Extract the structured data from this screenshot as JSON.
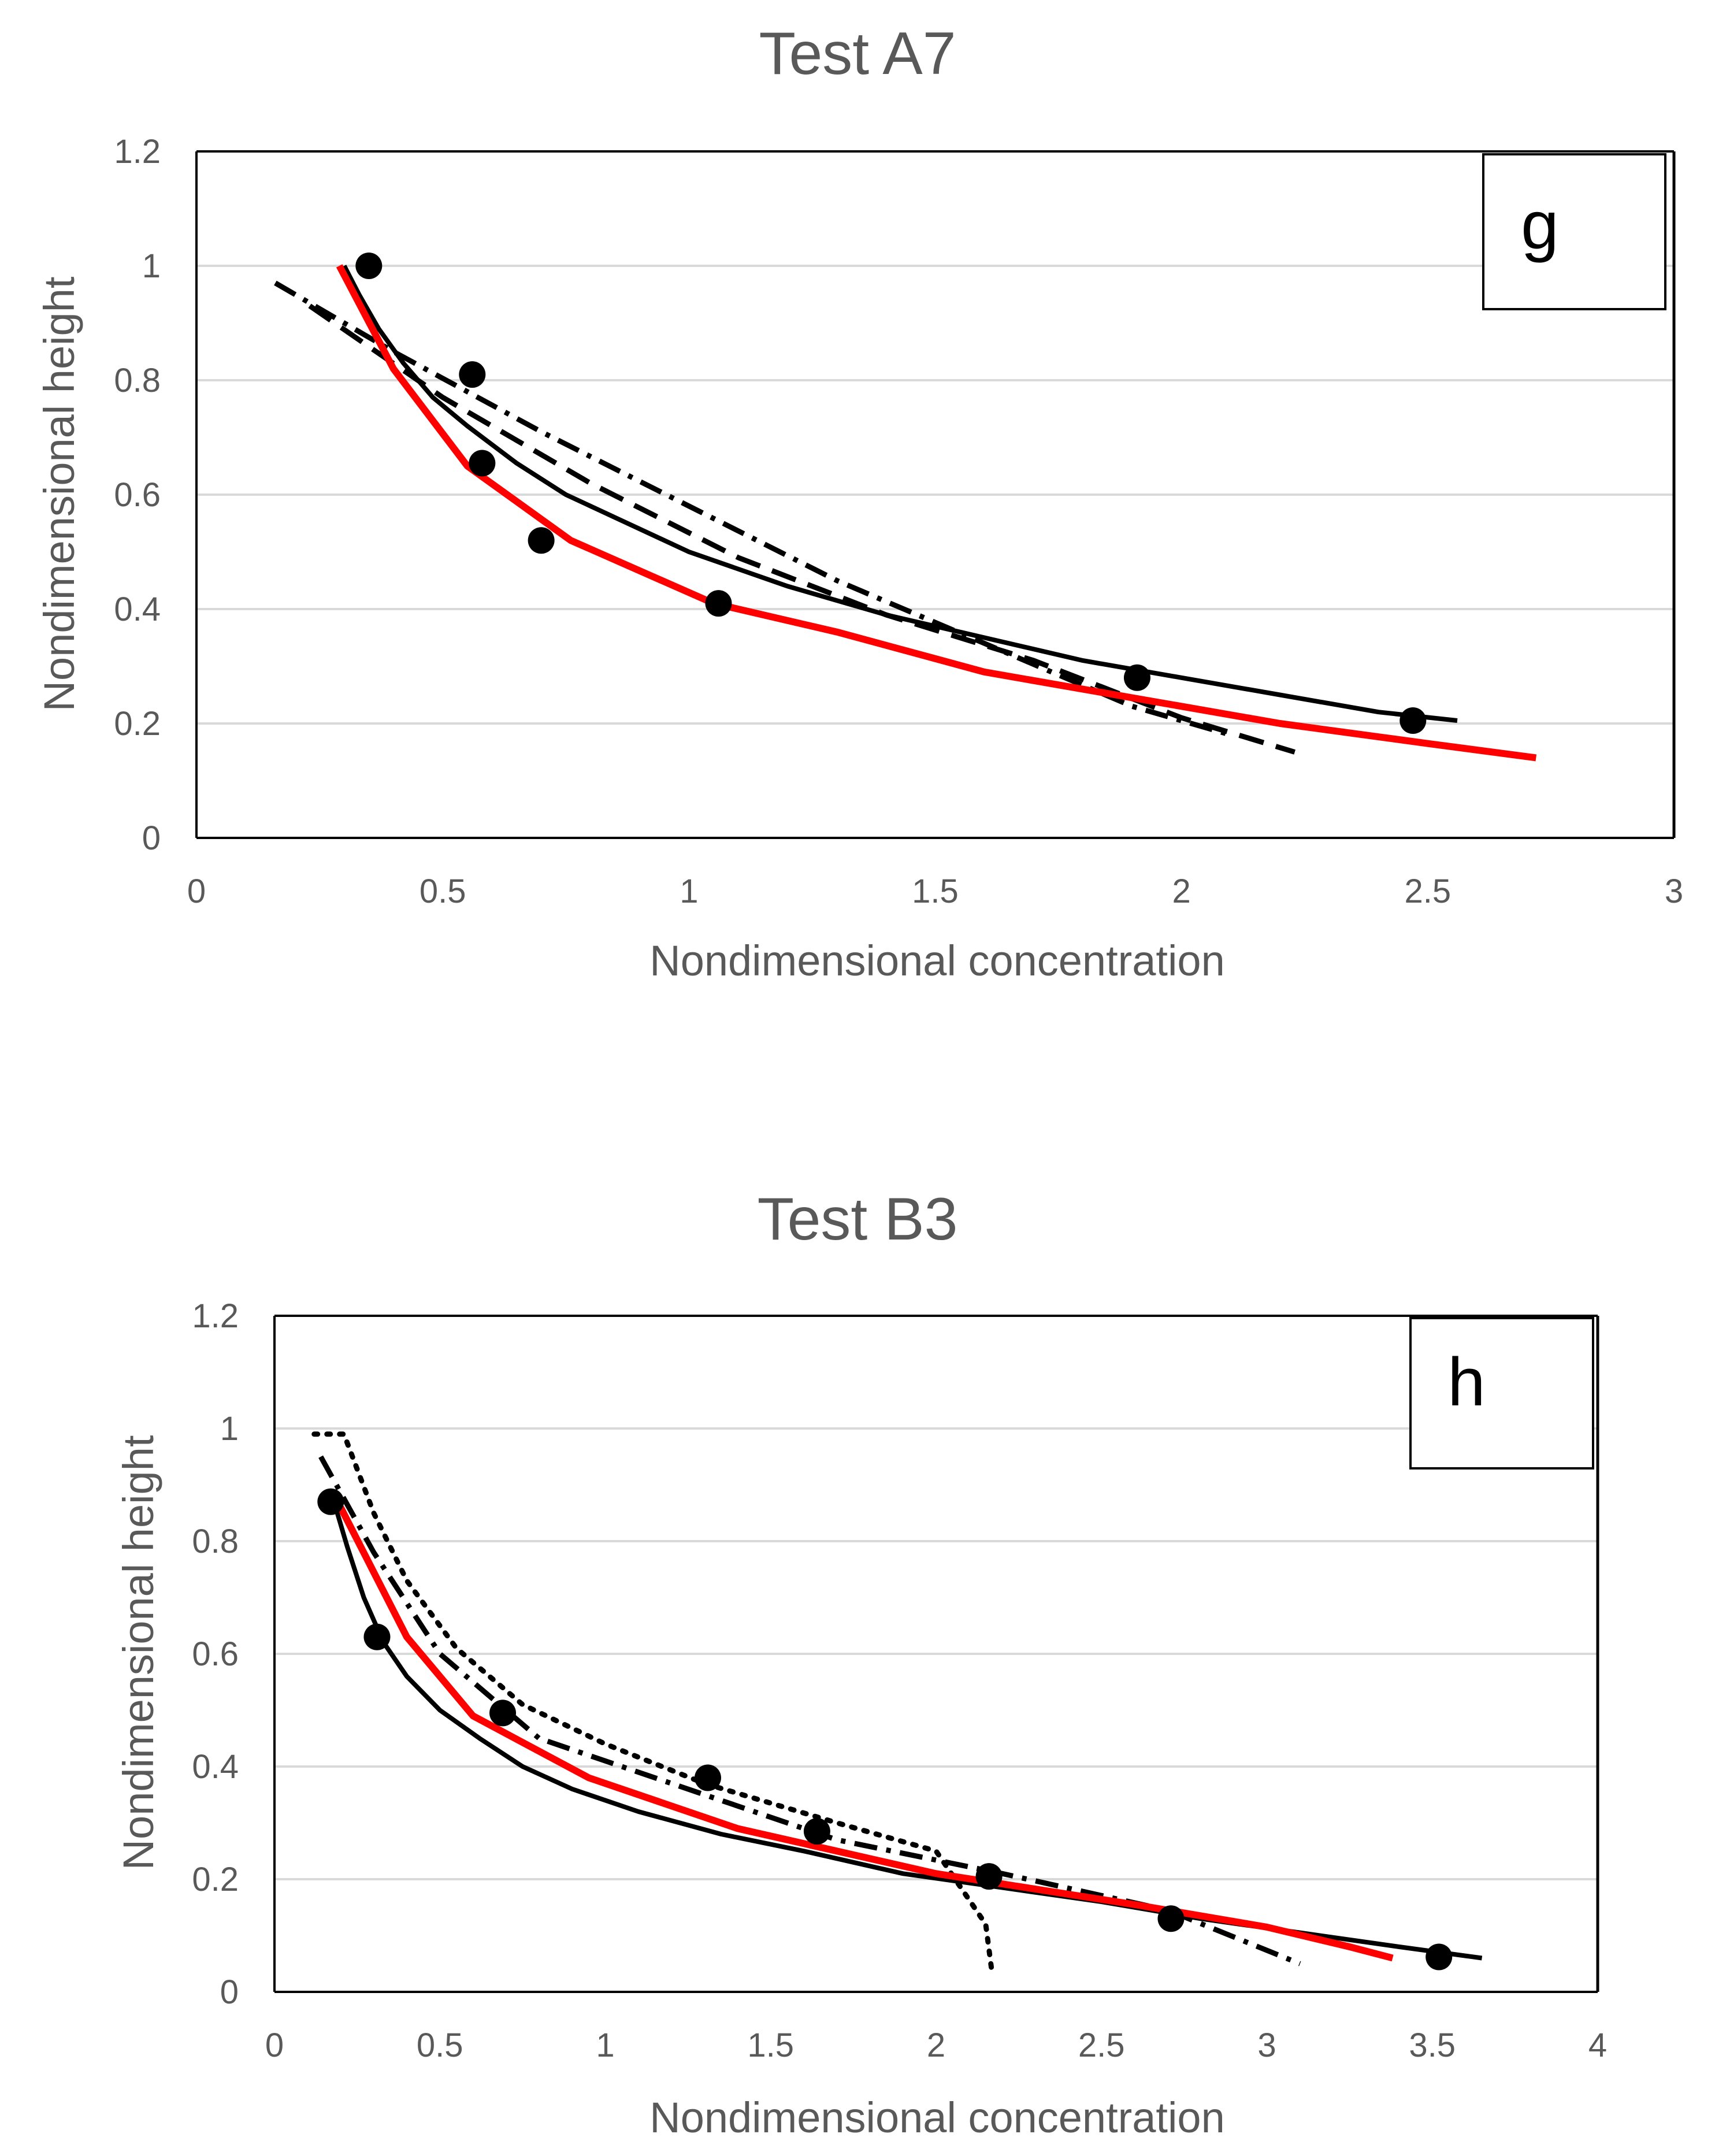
{
  "chart_data": [
    {
      "type": "line",
      "title": "Test A7",
      "panel_label": "g",
      "xlabel": "Nondimensional concentration",
      "ylabel": "Nondimensional height",
      "xlim": [
        0,
        3
      ],
      "ylim": [
        0,
        1.2
      ],
      "xticks": [
        0,
        0.5,
        1,
        1.5,
        2,
        2.5,
        3
      ],
      "xtick_labels": [
        "0",
        "0.5",
        "1",
        "1.5",
        "2",
        "2.5",
        "3"
      ],
      "yticks": [
        0,
        0.2,
        0.4,
        0.6,
        0.8,
        1,
        1.2
      ],
      "ytick_labels": [
        "0",
        "0.2",
        "0.4",
        "0.6",
        "0.8",
        "1",
        "1.2"
      ],
      "grid": true,
      "series": [
        {
          "name": "measured",
          "style": "markers",
          "color": "#000000",
          "x": [
            0.35,
            0.56,
            0.58,
            0.7,
            1.06,
            1.91,
            2.47
          ],
          "y": [
            1.0,
            0.81,
            0.655,
            0.52,
            0.41,
            0.28,
            0.205
          ]
        },
        {
          "name": "black solid",
          "style": "solid",
          "color": "#000000",
          "x": [
            0.3,
            0.33,
            0.37,
            0.42,
            0.48,
            0.55,
            0.65,
            0.75,
            0.85,
            1.0,
            1.2,
            1.4,
            1.6,
            1.8,
            2.0,
            2.2,
            2.4,
            2.56
          ],
          "y": [
            1.0,
            0.95,
            0.89,
            0.83,
            0.77,
            0.72,
            0.655,
            0.6,
            0.56,
            0.5,
            0.44,
            0.39,
            0.35,
            0.31,
            0.28,
            0.25,
            0.22,
            0.205
          ]
        },
        {
          "name": "red solid",
          "style": "solid",
          "color": "#ff0000",
          "x": [
            0.29,
            0.4,
            0.55,
            0.76,
            1.05,
            1.3,
            1.6,
            1.9,
            2.2,
            2.5,
            2.72
          ],
          "y": [
            1.0,
            0.82,
            0.65,
            0.52,
            0.41,
            0.36,
            0.29,
            0.245,
            0.2,
            0.165,
            0.14
          ]
        },
        {
          "name": "dash-dot",
          "style": "dashdot",
          "color": "#000000",
          "x": [
            0.16,
            0.4,
            0.7,
            1.0,
            1.3,
            1.6,
            1.9,
            2.1
          ],
          "y": [
            0.97,
            0.85,
            0.71,
            0.58,
            0.45,
            0.34,
            0.23,
            0.18
          ]
        },
        {
          "name": "dashed",
          "style": "dashed",
          "color": "#000000",
          "x": [
            0.23,
            0.5,
            0.8,
            1.1,
            1.4,
            1.7,
            2.0,
            2.23
          ],
          "y": [
            0.93,
            0.77,
            0.62,
            0.49,
            0.39,
            0.31,
            0.21,
            0.15
          ]
        }
      ]
    },
    {
      "type": "line",
      "title": "Test B3",
      "panel_label": "h",
      "xlabel": "Nondimensional concentration",
      "ylabel": "Nondimensional height",
      "xlim": [
        0,
        4
      ],
      "ylim": [
        0,
        1.2
      ],
      "xticks": [
        0,
        0.5,
        1,
        1.5,
        2,
        2.5,
        3,
        3.5,
        4
      ],
      "xtick_labels": [
        "0",
        "0.5",
        "1",
        "1.5",
        "2",
        "2.5",
        "3",
        "3.5",
        "4"
      ],
      "yticks": [
        0,
        0.2,
        0.4,
        0.6,
        0.8,
        1,
        1.2
      ],
      "ytick_labels": [
        "0",
        "0.2",
        "0.4",
        "0.6",
        "0.8",
        "1",
        "1.2"
      ],
      "grid": true,
      "series": [
        {
          "name": "measured",
          "style": "markers",
          "color": "#000000",
          "x": [
            0.17,
            0.31,
            0.69,
            1.31,
            1.64,
            2.16,
            2.71,
            3.52
          ],
          "y": [
            0.87,
            0.63,
            0.495,
            0.38,
            0.285,
            0.205,
            0.13,
            0.062
          ]
        },
        {
          "name": "black solid",
          "style": "solid",
          "color": "#000000",
          "x": [
            0.18,
            0.22,
            0.27,
            0.33,
            0.4,
            0.5,
            0.62,
            0.75,
            0.9,
            1.1,
            1.35,
            1.6,
            1.9,
            2.2,
            2.5,
            2.8,
            3.1,
            3.4,
            3.65
          ],
          "y": [
            0.87,
            0.79,
            0.7,
            0.62,
            0.56,
            0.5,
            0.45,
            0.4,
            0.36,
            0.32,
            0.28,
            0.25,
            0.21,
            0.185,
            0.16,
            0.13,
            0.105,
            0.08,
            0.06
          ]
        },
        {
          "name": "red solid",
          "style": "solid",
          "color": "#ff0000",
          "x": [
            0.2,
            0.4,
            0.6,
            0.95,
            1.4,
            2.0,
            2.6,
            3.0,
            3.25,
            3.38
          ],
          "y": [
            0.86,
            0.63,
            0.49,
            0.38,
            0.29,
            0.21,
            0.155,
            0.115,
            0.08,
            0.06
          ]
        },
        {
          "name": "dash-dot",
          "style": "dashdot",
          "color": "#000000",
          "x": [
            0.14,
            0.3,
            0.5,
            0.8,
            1.2,
            1.7,
            2.2,
            2.7,
            3.1
          ],
          "y": [
            0.95,
            0.78,
            0.6,
            0.45,
            0.37,
            0.27,
            0.21,
            0.145,
            0.05
          ]
        },
        {
          "name": "dotted",
          "style": "dotted",
          "color": "#000000",
          "x": [
            0.12,
            0.21,
            0.3,
            0.4,
            0.55,
            0.75,
            1.0,
            1.3,
            1.7,
            2.0,
            2.15,
            2.17
          ],
          "y": [
            0.99,
            0.99,
            0.85,
            0.73,
            0.61,
            0.51,
            0.44,
            0.37,
            0.3,
            0.25,
            0.12,
            0.03
          ]
        }
      ]
    }
  ]
}
